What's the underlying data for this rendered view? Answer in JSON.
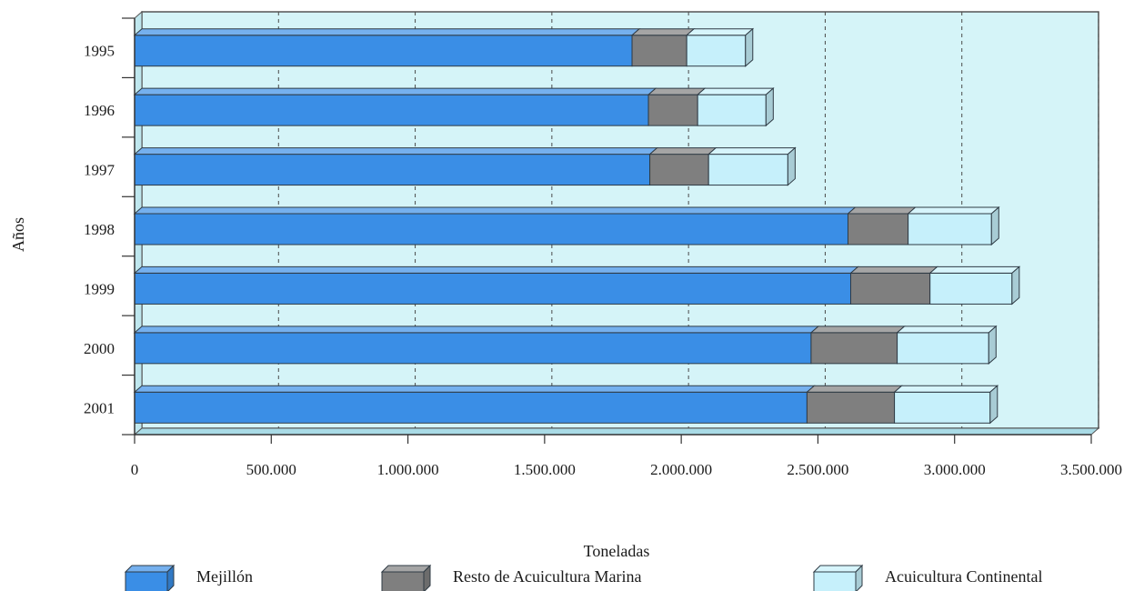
{
  "chart_data": {
    "type": "bar",
    "orientation": "horizontal",
    "stacked": true,
    "style": "3d",
    "categories": [
      "1995",
      "1996",
      "1997",
      "1998",
      "1999",
      "2000",
      "2001"
    ],
    "series": [
      {
        "name": "Mejillón",
        "values": [
          1820000,
          1880000,
          1885000,
          2610000,
          2620000,
          2475000,
          2460000
        ],
        "color": "#3a8ee6"
      },
      {
        "name": "Resto de Acuicultura Marina",
        "values": [
          200000,
          180000,
          215000,
          220000,
          290000,
          315000,
          320000
        ],
        "color": "#7f7f7f"
      },
      {
        "name": "Acuicultura Continental",
        "values": [
          215000,
          250000,
          290000,
          305000,
          300000,
          335000,
          350000
        ],
        "color": "#c6f0fb"
      }
    ],
    "xlabel": "Toneladas",
    "ylabel": "Años",
    "xlim": [
      0,
      3500000
    ],
    "xticks": [
      0,
      500000,
      1000000,
      1500000,
      2000000,
      2500000,
      3000000,
      3500000
    ],
    "xtick_labels": [
      "0",
      "500.000",
      "1.000.000",
      "1.500.000",
      "2.000.000",
      "2.500.000",
      "3.000.000",
      "3.500.000"
    ],
    "grid": "vertical-dashed",
    "legend_position": "bottom",
    "plot_background": "#d5f4f8"
  }
}
